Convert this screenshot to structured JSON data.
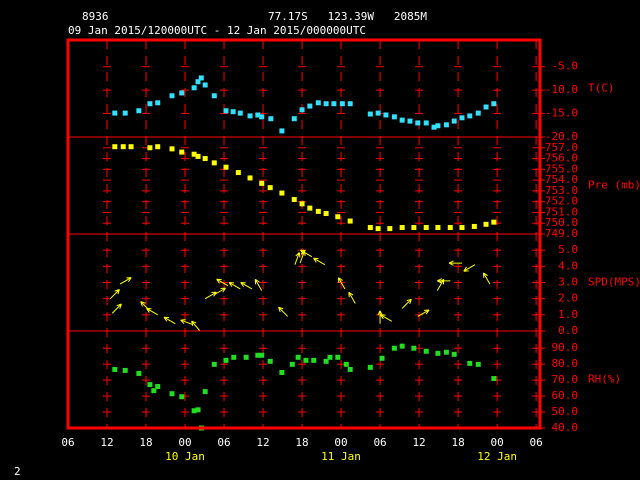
{
  "header": {
    "station": "8936",
    "location": "77.17S   123.39W   2085M",
    "period": "09 Jan 2015/120000UTC - 12 Jan 2015/000000UTC",
    "page": "2"
  },
  "x_axis": {
    "xlim": [
      0,
      72.6
    ],
    "xticks": [
      {
        "value": 0,
        "label": "06"
      },
      {
        "value": 6,
        "label": "12"
      },
      {
        "value": 12,
        "label": "18"
      },
      {
        "value": 18,
        "label": "00"
      },
      {
        "value": 24,
        "label": "06"
      },
      {
        "value": 30,
        "label": "12"
      },
      {
        "value": 36,
        "label": "18"
      },
      {
        "value": 42,
        "label": "00"
      },
      {
        "value": 48,
        "label": "06"
      },
      {
        "value": 54,
        "label": "12"
      },
      {
        "value": 60,
        "label": "18"
      },
      {
        "value": 66,
        "label": "00"
      },
      {
        "value": 72,
        "label": "06"
      }
    ],
    "date_labels": [
      {
        "value": 18,
        "label": "10 Jan"
      },
      {
        "value": 42,
        "label": "11 Jan"
      },
      {
        "value": 66,
        "label": "12 Jan"
      }
    ]
  },
  "chart_data": [
    {
      "type": "scatter",
      "ylabel": "T(C)",
      "color": "#33e0ff",
      "ylim": [
        -20,
        0.7
      ],
      "yticks": [
        {
          "value": -5,
          "label": "-5.0"
        },
        {
          "value": -10,
          "label": "-10.0"
        },
        {
          "value": -15,
          "label": "-15.0"
        },
        {
          "value": -20,
          "label": "-20.0"
        }
      ],
      "x": [
        7.2,
        8.8,
        10.9,
        12.6,
        13.8,
        16.0,
        17.5,
        19.4,
        20.0,
        20.5,
        21.1,
        22.5,
        24.3,
        25.4,
        26.5,
        28.0,
        29.2,
        29.8,
        31.2,
        32.9,
        34.8,
        36.0,
        37.2,
        38.5,
        39.7,
        40.9,
        42.2,
        43.4,
        46.5,
        47.7,
        48.9,
        50.2,
        51.4,
        52.6,
        53.8,
        55.1,
        56.3,
        56.9,
        58.2,
        59.4,
        60.6,
        61.8,
        63.1,
        64.3,
        65.5
      ],
      "values": [
        -14.9,
        -14.9,
        -14.4,
        -12.9,
        -12.7,
        -11.2,
        -10.6,
        -9.5,
        -8.2,
        -7.4,
        -8.9,
        -11.2,
        -14.4,
        -14.6,
        -14.9,
        -15.5,
        -15.3,
        -15.7,
        -16.1,
        -18.7,
        -16.1,
        -14.2,
        -13.4,
        -12.7,
        -12.9,
        -12.9,
        -12.9,
        -12.9,
        -15.1,
        -14.9,
        -15.3,
        -15.7,
        -16.4,
        -16.6,
        -17.0,
        -17.0,
        -17.9,
        -17.6,
        -17.4,
        -16.6,
        -15.9,
        -15.5,
        -14.9,
        -13.6,
        -12.9
      ]
    },
    {
      "type": "scatter",
      "ylabel": "Pre (mb)",
      "color": "#ffff00",
      "ylim": [
        749,
        758
      ],
      "yticks": [
        {
          "value": 757,
          "label": "757.0"
        },
        {
          "value": 756,
          "label": "756.0"
        },
        {
          "value": 755,
          "label": "755.0"
        },
        {
          "value": 754,
          "label": "754.0"
        },
        {
          "value": 753,
          "label": "753.0"
        },
        {
          "value": 752,
          "label": "752.0"
        },
        {
          "value": 751,
          "label": "751.0"
        },
        {
          "value": 750,
          "label": "750.0"
        },
        {
          "value": 749,
          "label": "749.0"
        }
      ],
      "x": [
        7.2,
        8.5,
        9.7,
        12.6,
        13.8,
        16.0,
        17.5,
        19.4,
        20.0,
        21.1,
        22.5,
        24.3,
        26.2,
        28.0,
        29.8,
        31.1,
        32.9,
        34.8,
        36.0,
        37.2,
        38.5,
        39.7,
        41.5,
        43.4,
        46.5,
        47.7,
        49.5,
        51.4,
        53.2,
        55.1,
        56.9,
        58.8,
        60.6,
        62.5,
        64.3,
        65.5
      ],
      "values": [
        757.1,
        757.1,
        757.1,
        757.0,
        757.1,
        756.9,
        756.6,
        756.4,
        756.2,
        756.0,
        755.6,
        755.2,
        754.7,
        754.2,
        753.7,
        753.3,
        752.8,
        752.2,
        751.8,
        751.4,
        751.1,
        750.9,
        750.6,
        750.2,
        749.6,
        749.5,
        749.5,
        749.6,
        749.6,
        749.6,
        749.6,
        749.6,
        749.6,
        749.7,
        749.9,
        750.1
      ]
    },
    {
      "type": "vector",
      "ylabel": "SPD(MPS)",
      "color": "#ffff00",
      "ylim": [
        0,
        6
      ],
      "yticks": [
        {
          "value": 5,
          "label": "5.0"
        },
        {
          "value": 4,
          "label": "4.0"
        },
        {
          "value": 3,
          "label": "3.0"
        },
        {
          "value": 2,
          "label": "2.0"
        },
        {
          "value": 1,
          "label": "1.0"
        },
        {
          "value": 0,
          "label": "0.0"
        }
      ],
      "x": [
        6.5,
        6.8,
        8.0,
        12.6,
        13.8,
        16.5,
        19.2,
        20.3,
        21.1,
        22.5,
        24.6,
        26.5,
        28.3,
        29.8,
        33.8,
        34.9,
        35.7,
        37.5,
        39.5,
        42.6,
        44.2,
        48.0,
        49.8,
        51.4,
        53.8,
        56.8,
        58.8,
        60.6,
        62.6,
        64.9
      ],
      "values": [
        2.0,
        1.1,
        2.9,
        1.25,
        1.0,
        0.45,
        0.4,
        0.0,
        2.0,
        2.25,
        2.8,
        2.6,
        2.6,
        2.5,
        0.9,
        4.1,
        4.2,
        4.6,
        4.1,
        2.6,
        1.7,
        0.45,
        0.6,
        1.4,
        0.9,
        2.5,
        3.1,
        4.2,
        4.1,
        2.9
      ],
      "directions": [
        45,
        45,
        60,
        315,
        300,
        300,
        290,
        320,
        60,
        60,
        300,
        300,
        300,
        330,
        315,
        20,
        20,
        300,
        300,
        330,
        330,
        0,
        300,
        45,
        60,
        30,
        270,
        270,
        240,
        330
      ]
    },
    {
      "type": "scatter",
      "ylabel": "RH(%)",
      "color": "#22dd22",
      "ylim": [
        40,
        100.8
      ],
      "yticks": [
        {
          "value": 90,
          "label": "90.0"
        },
        {
          "value": 80,
          "label": "80.0"
        },
        {
          "value": 70,
          "label": "70.0"
        },
        {
          "value": 60,
          "label": "60.0"
        },
        {
          "value": 50,
          "label": "50.0"
        },
        {
          "value": 40,
          "label": "40.0"
        }
      ],
      "x": [
        7.2,
        8.8,
        10.9,
        12.6,
        13.2,
        13.8,
        16.0,
        17.5,
        19.4,
        20.0,
        20.5,
        21.1,
        22.5,
        24.3,
        25.5,
        27.4,
        29.2,
        29.8,
        31.1,
        32.9,
        34.5,
        35.4,
        36.6,
        37.8,
        39.7,
        40.3,
        41.5,
        42.8,
        43.4,
        46.5,
        48.3,
        50.2,
        51.4,
        53.2,
        55.1,
        56.9,
        58.2,
        59.4,
        61.8,
        63.1,
        65.5
      ],
      "values": [
        76.7,
        76.1,
        74.2,
        67.2,
        63.4,
        66.0,
        61.5,
        59.6,
        50.8,
        51.4,
        40.0,
        62.8,
        79.9,
        82.4,
        84.3,
        84.3,
        85.6,
        85.6,
        81.8,
        74.8,
        79.9,
        84.3,
        82.4,
        82.4,
        81.8,
        84.3,
        84.3,
        79.9,
        76.7,
        78.0,
        83.7,
        90.0,
        91.3,
        90.0,
        88.1,
        86.8,
        87.5,
        86.2,
        80.5,
        79.9,
        71.0
      ]
    }
  ]
}
